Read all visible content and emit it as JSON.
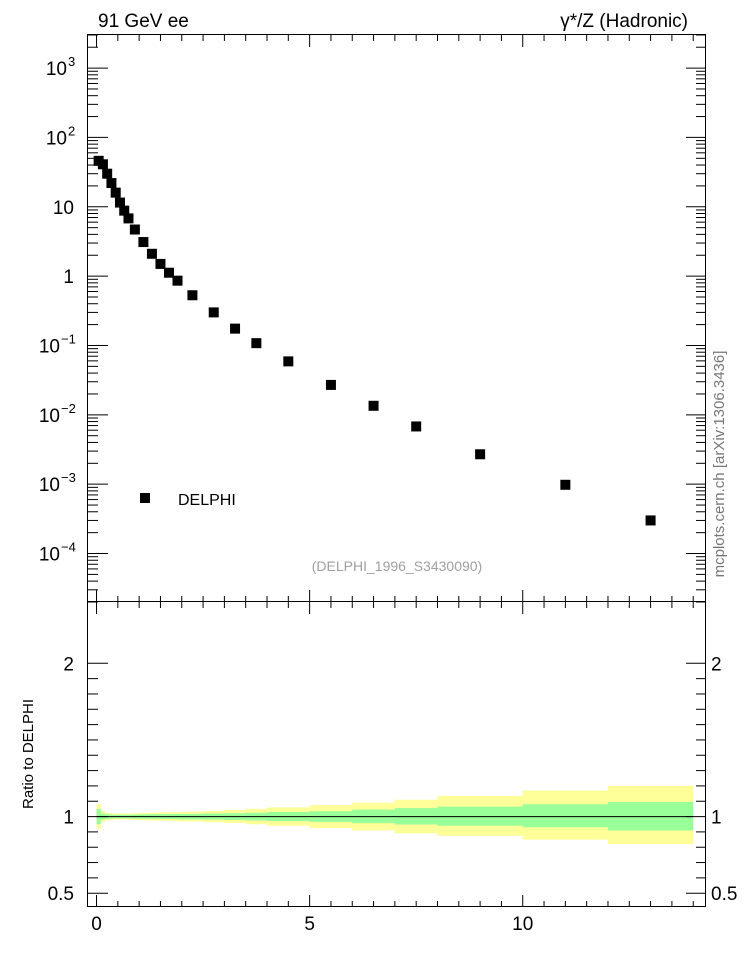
{
  "header": {
    "left": "91 GeV ee",
    "right": "γ*/Z (Hadronic)"
  },
  "side_label": "mcplots.cern.ch [arXiv:1306.3436]",
  "watermark": "(DELPHI_1996_S3430090)",
  "colors": {
    "marker": "#000000",
    "band_inner": "#99ff99",
    "band_outer": "#ffff99",
    "ref_line": "#000000"
  },
  "chart_data": [
    {
      "type": "scatter",
      "yscale": "log",
      "ylim": [
        2e-05,
        3000
      ],
      "xlim": [
        -0.2,
        14.3
      ],
      "y_ticks": [
        {
          "value": 1000,
          "base": "10",
          "exp": "3"
        },
        {
          "value": 100,
          "base": "10",
          "exp": "2"
        },
        {
          "value": 10,
          "base": "10",
          "exp": ""
        },
        {
          "value": 1,
          "base": "1",
          "exp": ""
        },
        {
          "value": 0.1,
          "base": "10",
          "exp": "−1"
        },
        {
          "value": 0.01,
          "base": "10",
          "exp": "−2"
        },
        {
          "value": 0.001,
          "base": "10",
          "exp": "−3"
        },
        {
          "value": 0.0001,
          "base": "10",
          "exp": "−4"
        }
      ],
      "legend": {
        "entries": [
          "DELPHI"
        ],
        "position": "lower-left"
      },
      "series": [
        {
          "name": "DELPHI",
          "x": [
            0.05,
            0.15,
            0.25,
            0.35,
            0.45,
            0.55,
            0.65,
            0.75,
            0.9,
            1.1,
            1.3,
            1.5,
            1.7,
            1.9,
            2.25,
            2.75,
            3.25,
            3.75,
            4.5,
            5.5,
            6.5,
            7.5,
            9.0,
            11.0,
            13.0
          ],
          "y": [
            46,
            41,
            30,
            22,
            16,
            11.5,
            8.8,
            6.8,
            4.7,
            3.1,
            2.1,
            1.5,
            1.12,
            0.86,
            0.53,
            0.3,
            0.175,
            0.108,
            0.059,
            0.027,
            0.0135,
            0.0068,
            0.0027,
            0.00098,
            0.0003
          ]
        }
      ]
    },
    {
      "type": "area",
      "ylabel": "Ratio to DELPHI",
      "ylim": [
        0.41,
        2.4
      ],
      "xlim": [
        -0.2,
        14.3
      ],
      "y_ticks": [
        "0.5",
        "1",
        "2"
      ],
      "x_ticks": [
        "0",
        "5",
        "10"
      ],
      "reference": 1,
      "bands": {
        "x_edges": [
          0.0,
          0.1,
          0.2,
          0.3,
          0.4,
          0.5,
          0.6,
          0.7,
          0.8,
          1.0,
          1.2,
          1.4,
          1.6,
          1.8,
          2.0,
          2.5,
          3.0,
          3.5,
          4.0,
          5.0,
          6.0,
          7.0,
          8.0,
          10.0,
          12.0,
          14.0
        ],
        "inner_lo": [
          0.95,
          0.98,
          0.985,
          0.987,
          0.988,
          0.988,
          0.988,
          0.988,
          0.987,
          0.986,
          0.985,
          0.985,
          0.984,
          0.983,
          0.982,
          0.98,
          0.978,
          0.975,
          0.97,
          0.965,
          0.957,
          0.948,
          0.94,
          0.93,
          0.91
        ],
        "inner_hi": [
          1.05,
          1.02,
          1.015,
          1.013,
          1.012,
          1.012,
          1.012,
          1.012,
          1.013,
          1.014,
          1.015,
          1.015,
          1.016,
          1.017,
          1.018,
          1.02,
          1.022,
          1.025,
          1.03,
          1.035,
          1.045,
          1.055,
          1.065,
          1.08,
          1.095
        ],
        "outer_lo": [
          0.92,
          0.965,
          0.975,
          0.978,
          0.98,
          0.98,
          0.98,
          0.98,
          0.978,
          0.976,
          0.974,
          0.973,
          0.972,
          0.97,
          0.968,
          0.964,
          0.958,
          0.95,
          0.94,
          0.925,
          0.91,
          0.89,
          0.875,
          0.85,
          0.82
        ],
        "outer_hi": [
          1.08,
          1.035,
          1.025,
          1.022,
          1.02,
          1.02,
          1.02,
          1.02,
          1.022,
          1.024,
          1.026,
          1.027,
          1.028,
          1.03,
          1.032,
          1.036,
          1.042,
          1.05,
          1.06,
          1.075,
          1.09,
          1.11,
          1.135,
          1.17,
          1.2
        ]
      }
    }
  ]
}
